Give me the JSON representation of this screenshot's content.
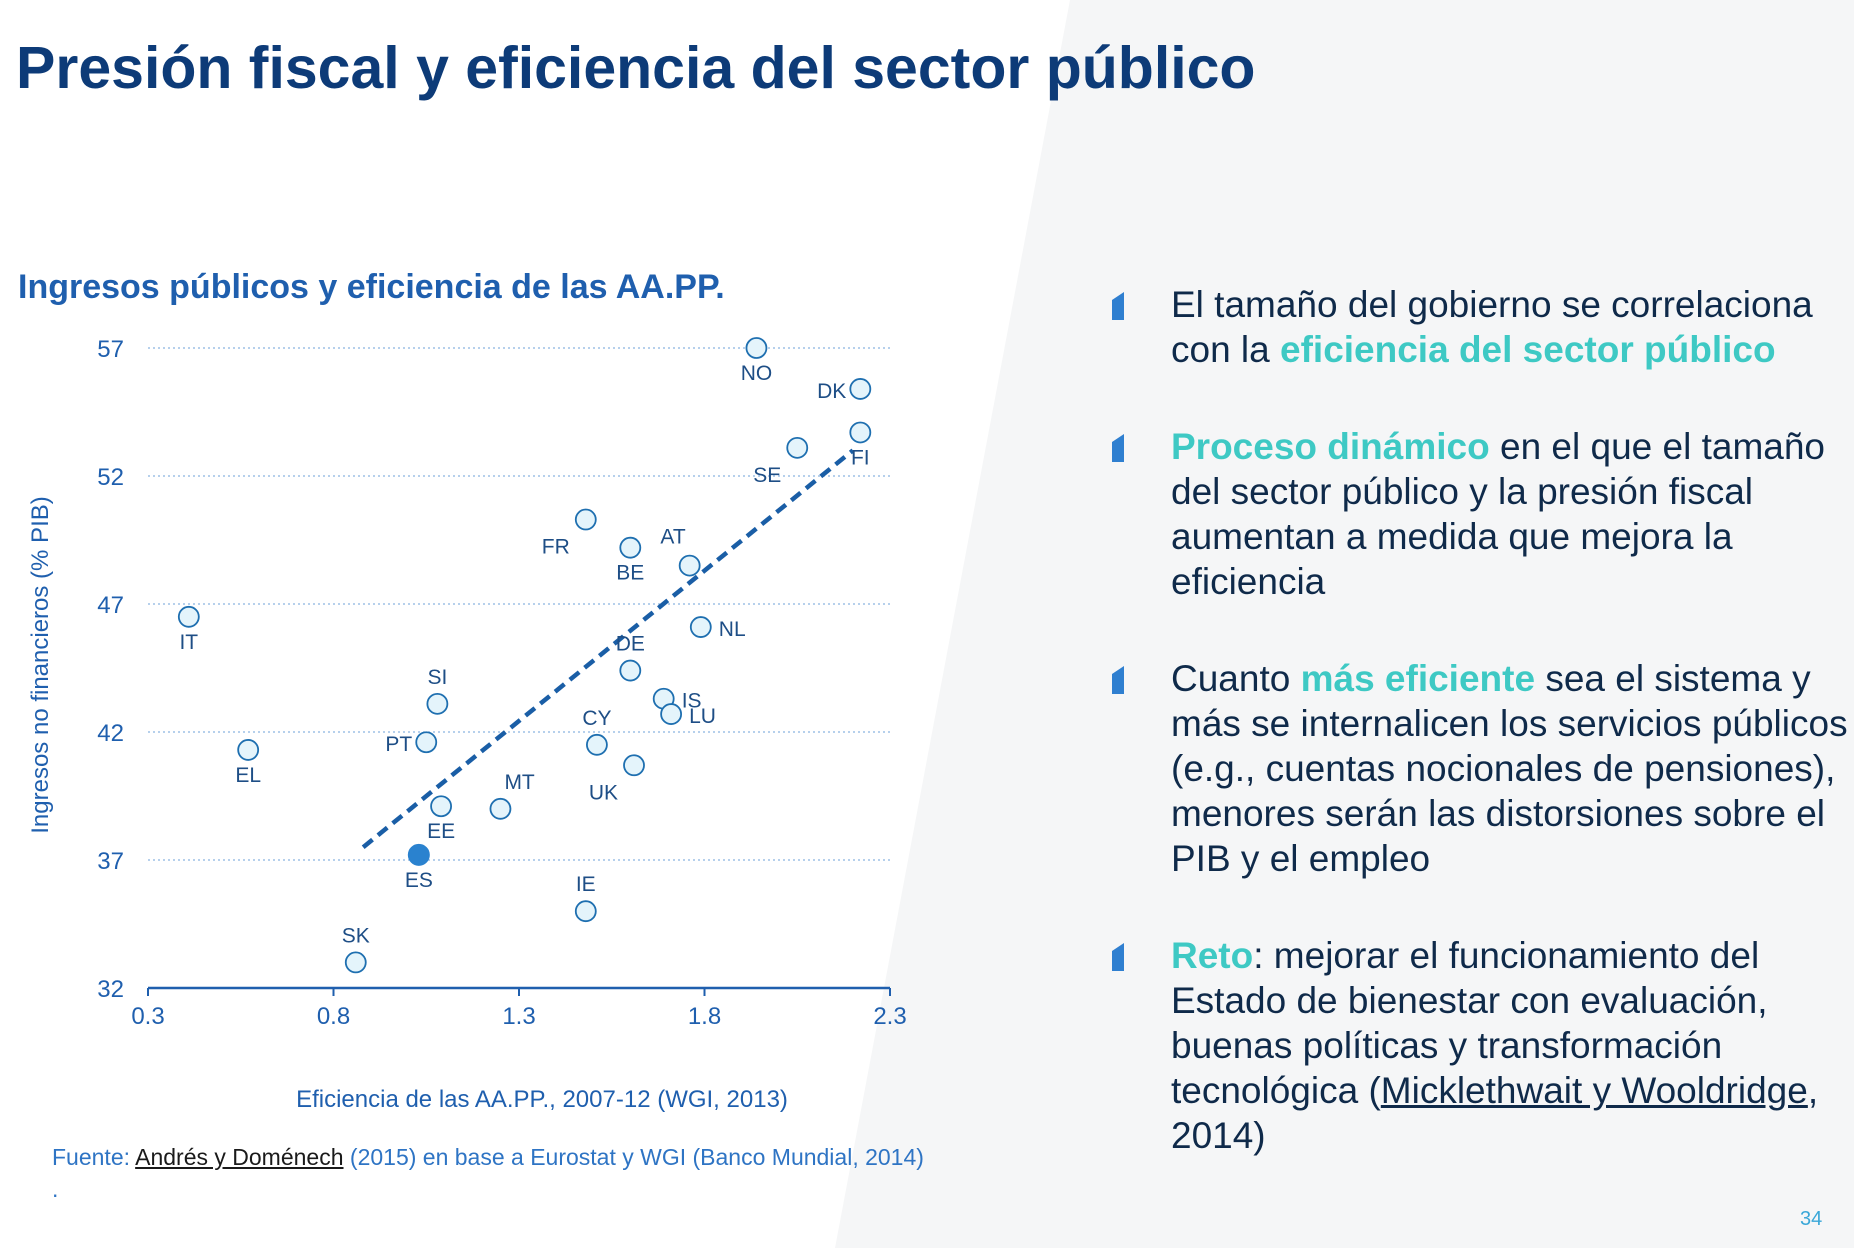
{
  "slide": {
    "title": "Presión fiscal y eficiencia del sector público",
    "page_number": "34"
  },
  "chart_title": "Ingresos públicos y eficiencia de las AA.PP.",
  "chart_data": {
    "type": "scatter",
    "title": "Ingresos públicos y eficiencia de las AA.PP.",
    "xlabel": "Eficiencia de las AA.PP., 2007-12 (WGI, 2013)",
    "ylabel": "Ingresos no financieros  (% PIB)",
    "xlim": [
      0.3,
      2.3
    ],
    "ylim": [
      32,
      57
    ],
    "xticks": [
      0.3,
      0.8,
      1.3,
      1.8,
      2.3
    ],
    "xtick_labels": [
      "0.3",
      "0.8",
      "1.3",
      "1.8",
      "2.3"
    ],
    "yticks": [
      32,
      37,
      42,
      47,
      52,
      57
    ],
    "ytick_labels": [
      "32",
      "37",
      "42",
      "47",
      "52",
      "57"
    ],
    "grid": "horizontal dotted",
    "trendline": {
      "style": "dashed",
      "from": [
        0.88,
        37.5
      ],
      "to": [
        2.2,
        53.0
      ]
    },
    "points": [
      {
        "label": "NO",
        "x": 1.94,
        "y": 57.0,
        "label_pos": "below"
      },
      {
        "label": "DK",
        "x": 2.22,
        "y": 55.4,
        "label_pos": "left"
      },
      {
        "label": "FI",
        "x": 2.22,
        "y": 53.7,
        "label_pos": "below"
      },
      {
        "label": "SE",
        "x": 2.05,
        "y": 53.1,
        "label_pos": "below-left"
      },
      {
        "label": "FR",
        "x": 1.48,
        "y": 50.3,
        "label_pos": "below-left"
      },
      {
        "label": "BE",
        "x": 1.6,
        "y": 49.2,
        "label_pos": "below"
      },
      {
        "label": "AT",
        "x": 1.76,
        "y": 48.5,
        "label_pos": "above-left"
      },
      {
        "label": "NL",
        "x": 1.79,
        "y": 46.1,
        "label_pos": "right"
      },
      {
        "label": "IT",
        "x": 0.41,
        "y": 46.5,
        "label_pos": "below"
      },
      {
        "label": "DE",
        "x": 1.6,
        "y": 44.4,
        "label_pos": "above"
      },
      {
        "label": "IS",
        "x": 1.69,
        "y": 43.3,
        "label_pos": "right"
      },
      {
        "label": "LU",
        "x": 1.71,
        "y": 42.7,
        "label_pos": "right"
      },
      {
        "label": "SI",
        "x": 1.08,
        "y": 43.1,
        "label_pos": "above"
      },
      {
        "label": "CY",
        "x": 1.51,
        "y": 41.5,
        "label_pos": "above"
      },
      {
        "label": "PT",
        "x": 1.05,
        "y": 41.6,
        "label_pos": "left"
      },
      {
        "label": "EL",
        "x": 0.57,
        "y": 41.3,
        "label_pos": "below"
      },
      {
        "label": "UK",
        "x": 1.61,
        "y": 40.7,
        "label_pos": "below-left"
      },
      {
        "label": "MT",
        "x": 1.25,
        "y": 39.0,
        "label_pos": "above-right"
      },
      {
        "label": "EE",
        "x": 1.09,
        "y": 39.1,
        "label_pos": "below"
      },
      {
        "label": "ES",
        "x": 1.03,
        "y": 37.2,
        "label_pos": "below",
        "highlight": true
      },
      {
        "label": "IE",
        "x": 1.48,
        "y": 35.0,
        "label_pos": "above"
      },
      {
        "label": "SK",
        "x": 0.86,
        "y": 33.0,
        "label_pos": "above"
      }
    ],
    "colors": {
      "axis": "#1f5fae",
      "marker_fill": "#e4f4fb",
      "marker_stroke": "#1e6fb0",
      "highlight": "#2a82cf",
      "trend": "#1a5ea6",
      "grid": "#8ab4e0",
      "label": "#1e4e86"
    }
  },
  "source": {
    "prefix": "Fuente: ",
    "link": "Andrés y Doménech",
    "suffix": " (2015) en base a Eurostat y WGI (Banco Mundial, 2014)",
    "dot": "."
  },
  "bullets": [
    {
      "parts": [
        {
          "text": "El tamaño del gobierno se correlaciona con la ",
          "style": "normal"
        },
        {
          "text": "eficiencia del sector público",
          "style": "hl"
        }
      ]
    },
    {
      "parts": [
        {
          "text": "Proceso dinámico",
          "style": "hl"
        },
        {
          "text": " en el que el tamaño del sector público y la presión fiscal aumentan a medida que mejora la eficiencia",
          "style": "normal"
        }
      ]
    },
    {
      "parts": [
        {
          "text": "Cuanto ",
          "style": "normal"
        },
        {
          "text": "más eficiente",
          "style": "hl"
        },
        {
          "text": " sea el sistema y más se internalicen los servicios públicos (e.g., cuentas nocionales de pensiones), menores serán las distorsiones sobre el PIB y el empleo",
          "style": "normal"
        }
      ]
    },
    {
      "parts": [
        {
          "text": "Reto",
          "style": "hl"
        },
        {
          "text": ": mejorar el funcionamiento del Estado de bienestar con evaluación, buenas políticas y transformación tecnológica (",
          "style": "normal"
        },
        {
          "text": "Micklethwait y Wooldridge",
          "style": "ul"
        },
        {
          "text": ", 2014)",
          "style": "normal"
        }
      ]
    }
  ],
  "colors": {
    "title": "#0d3b78",
    "accent": "#3ec9c4",
    "bullet_marker": "#2f7fd0"
  }
}
